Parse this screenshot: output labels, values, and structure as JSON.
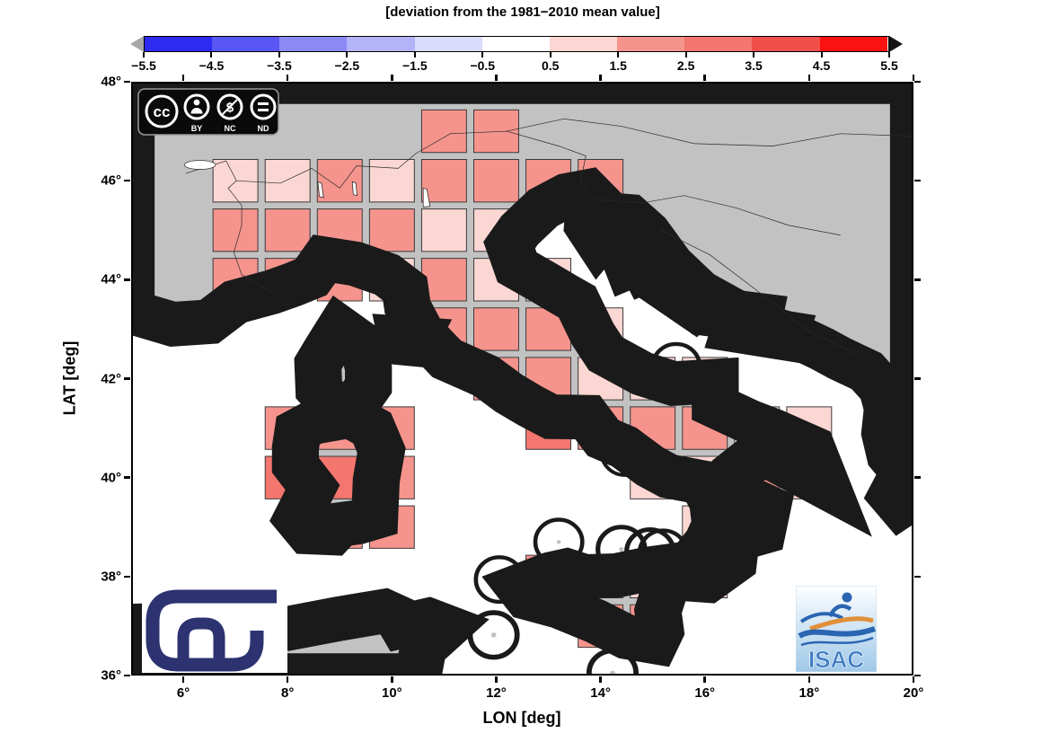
{
  "title": "[deviation from the 1981−2010 mean value]",
  "axes": {
    "x_label": "LON [deg]",
    "y_label": "LAT [deg]",
    "x_ticks": [
      6,
      8,
      10,
      12,
      14,
      16,
      18,
      20
    ],
    "y_ticks": [
      36,
      38,
      40,
      42,
      44,
      46,
      48
    ],
    "degree_symbol": "°"
  },
  "colorbar": {
    "tick_labels": [
      "−5.5",
      "−4.5",
      "−3.5",
      "−2.5",
      "−1.5",
      "−0.5",
      "0.5",
      "1.5",
      "2.5",
      "3.5",
      "4.5",
      "5.5"
    ],
    "segment_colors": [
      "#2d2bf2",
      "#5957f3",
      "#8b8af5",
      "#b3b3f8",
      "#dbdbfb",
      "#ffffff",
      "#fbd7d3",
      "#f5948d",
      "#f3766f",
      "#f04f4a",
      "#fb1210"
    ],
    "under_arrow_color": "#a8a8a8",
    "over_arrow_color": "#151515"
  },
  "map": {
    "land_color": "#c2c2c2",
    "sea_color": "#ffffff",
    "cell_border_color": "#3a3a3a"
  },
  "badges": {
    "cc_labels": [
      "BY",
      "NC",
      "ND"
    ],
    "isac_text": "ISAC"
  },
  "chart_data": {
    "type": "heatmap",
    "title": "[deviation from the 1981−2010 mean value]",
    "xlabel": "LON [deg]",
    "ylabel": "LAT [deg]",
    "xlim": [
      5,
      20
    ],
    "ylim": [
      36,
      48
    ],
    "grid_resolution_deg": 1,
    "anomaly_classes": {
      "light": {
        "range": [
          0.5,
          1.5
        ],
        "color": "#fbd7d3"
      },
      "medium": {
        "range": [
          1.5,
          2.5
        ],
        "color": "#f5948d"
      },
      "dark": {
        "range": [
          2.5,
          3.5
        ],
        "color": "#f3766f"
      }
    },
    "cells": [
      {
        "lon": 10.5,
        "lat": 46.5,
        "class": "medium"
      },
      {
        "lon": 11.5,
        "lat": 46.5,
        "class": "medium"
      },
      {
        "lon": 6.5,
        "lat": 45.5,
        "class": "light"
      },
      {
        "lon": 7.5,
        "lat": 45.5,
        "class": "light"
      },
      {
        "lon": 8.5,
        "lat": 45.5,
        "class": "medium"
      },
      {
        "lon": 9.5,
        "lat": 45.5,
        "class": "light"
      },
      {
        "lon": 10.5,
        "lat": 45.5,
        "class": "medium"
      },
      {
        "lon": 11.5,
        "lat": 45.5,
        "class": "medium"
      },
      {
        "lon": 12.5,
        "lat": 45.5,
        "class": "medium"
      },
      {
        "lon": 13.5,
        "lat": 45.5,
        "class": "medium"
      },
      {
        "lon": 6.5,
        "lat": 44.5,
        "class": "medium"
      },
      {
        "lon": 7.5,
        "lat": 44.5,
        "class": "medium"
      },
      {
        "lon": 8.5,
        "lat": 44.5,
        "class": "medium"
      },
      {
        "lon": 9.5,
        "lat": 44.5,
        "class": "medium"
      },
      {
        "lon": 10.5,
        "lat": 44.5,
        "class": "light"
      },
      {
        "lon": 11.5,
        "lat": 44.5,
        "class": "light"
      },
      {
        "lon": 6.5,
        "lat": 43.5,
        "class": "medium"
      },
      {
        "lon": 7.5,
        "lat": 43.5,
        "class": "medium"
      },
      {
        "lon": 8.5,
        "lat": 43.5,
        "class": "medium"
      },
      {
        "lon": 9.5,
        "lat": 43.5,
        "class": "light"
      },
      {
        "lon": 10.5,
        "lat": 43.5,
        "class": "medium"
      },
      {
        "lon": 11.5,
        "lat": 43.5,
        "class": "light"
      },
      {
        "lon": 12.5,
        "lat": 43.5,
        "class": "light"
      },
      {
        "lon": 10.5,
        "lat": 42.5,
        "class": "medium"
      },
      {
        "lon": 11.5,
        "lat": 42.5,
        "class": "medium"
      },
      {
        "lon": 12.5,
        "lat": 42.5,
        "class": "medium"
      },
      {
        "lon": 13.5,
        "lat": 42.5,
        "class": "light"
      },
      {
        "lon": 11.5,
        "lat": 41.5,
        "class": "medium"
      },
      {
        "lon": 12.5,
        "lat": 41.5,
        "class": "medium"
      },
      {
        "lon": 13.5,
        "lat": 41.5,
        "class": "light"
      },
      {
        "lon": 14.5,
        "lat": 41.5,
        "class": "light"
      },
      {
        "lon": 15.5,
        "lat": 41.5,
        "class": "light"
      },
      {
        "lon": 7.5,
        "lat": 40.5,
        "class": "medium"
      },
      {
        "lon": 8.5,
        "lat": 40.5,
        "class": "medium"
      },
      {
        "lon": 9.5,
        "lat": 40.5,
        "class": "medium"
      },
      {
        "lon": 12.5,
        "lat": 40.5,
        "class": "dark"
      },
      {
        "lon": 13.5,
        "lat": 40.5,
        "class": "medium"
      },
      {
        "lon": 14.5,
        "lat": 40.5,
        "class": "medium"
      },
      {
        "lon": 15.5,
        "lat": 40.5,
        "class": "medium"
      },
      {
        "lon": 16.5,
        "lat": 40.5,
        "class": "light"
      },
      {
        "lon": 17.5,
        "lat": 40.5,
        "class": "light"
      },
      {
        "lon": 7.5,
        "lat": 39.5,
        "class": "dark"
      },
      {
        "lon": 8.5,
        "lat": 39.5,
        "class": "dark"
      },
      {
        "lon": 9.5,
        "lat": 39.5,
        "class": "medium"
      },
      {
        "lon": 14.5,
        "lat": 39.5,
        "class": "light"
      },
      {
        "lon": 15.5,
        "lat": 39.5,
        "class": "light"
      },
      {
        "lon": 16.5,
        "lat": 39.5,
        "class": "medium"
      },
      {
        "lon": 17.5,
        "lat": 39.5,
        "class": "light"
      },
      {
        "lon": 8.5,
        "lat": 38.5,
        "class": "medium"
      },
      {
        "lon": 9.5,
        "lat": 38.5,
        "class": "medium"
      },
      {
        "lon": 15.5,
        "lat": 38.5,
        "class": "light"
      },
      {
        "lon": 16.5,
        "lat": 38.5,
        "class": "medium"
      },
      {
        "lon": 12.5,
        "lat": 37.5,
        "class": "medium"
      },
      {
        "lon": 13.5,
        "lat": 37.5,
        "class": "medium"
      },
      {
        "lon": 14.5,
        "lat": 37.5,
        "class": "light"
      },
      {
        "lon": 15.5,
        "lat": 37.5,
        "class": "light"
      },
      {
        "lon": 13.5,
        "lat": 36.5,
        "class": "medium"
      },
      {
        "lon": 14.5,
        "lat": 36.5,
        "class": "medium"
      }
    ]
  }
}
